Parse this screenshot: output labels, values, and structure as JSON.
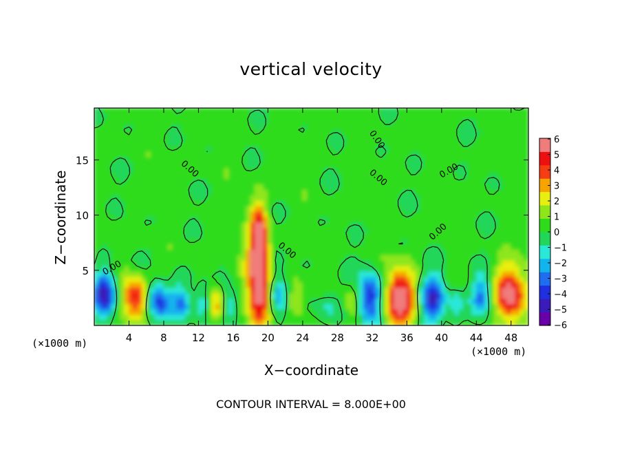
{
  "chart_data": {
    "type": "heatmap",
    "title": "vertical velocity",
    "xlabel": "X−coordinate",
    "ylabel": "Z−coordinate",
    "x_unit_label": "(×1000 m)",
    "xlim": [
      0,
      50
    ],
    "ylim": [
      0,
      19.7
    ],
    "xticks": [
      4,
      8,
      12,
      16,
      20,
      24,
      28,
      32,
      36,
      40,
      44,
      48
    ],
    "yticks": [
      5,
      10,
      15
    ],
    "colorbar": {
      "min": -6,
      "max": 6,
      "ticks": [
        "6",
        "5",
        "4",
        "3",
        "2",
        "1",
        "0",
        "−1",
        "−2",
        "−3",
        "−4",
        "−5",
        "−6"
      ],
      "colors": [
        "#6a00a8",
        "#3a1ab8",
        "#1f30e0",
        "#1f6ef0",
        "#12b4ee",
        "#2ae8d8",
        "#22d65a",
        "#2fdc1c",
        "#8ee61a",
        "#e8ee10",
        "#f7a400",
        "#f63c12",
        "#ee1010",
        "#f07c7c"
      ]
    },
    "contour_labels": [
      "0.00",
      "0.00",
      "0.00",
      "0.00",
      "0.00",
      "0.00",
      "0.00"
    ],
    "background_value": 0.3,
    "features": [
      {
        "x": 1.0,
        "z": 2.5,
        "w": -5.5,
        "sx": 0.9,
        "sz": 1.5
      },
      {
        "x": 4.5,
        "z": 2.3,
        "w": 4.8,
        "sx": 1.0,
        "sz": 1.4
      },
      {
        "x": 7.2,
        "z": 2.0,
        "w": -4.0,
        "sx": 0.9,
        "sz": 1.2
      },
      {
        "x": 9.8,
        "z": 1.8,
        "w": -3.2,
        "sx": 0.9,
        "sz": 1.2
      },
      {
        "x": 12.5,
        "z": 1.8,
        "w": -2.5,
        "sx": 0.7,
        "sz": 1.1
      },
      {
        "x": 13.7,
        "z": 1.6,
        "w": 3.5,
        "sx": 0.8,
        "sz": 1.2
      },
      {
        "x": 15.5,
        "z": 1.5,
        "w": -2.0,
        "sx": 0.8,
        "sz": 1.0
      },
      {
        "x": 18.8,
        "z": 3.5,
        "w": 6.0,
        "sx": 0.9,
        "sz": 2.8
      },
      {
        "x": 18.7,
        "z": 7.8,
        "w": 4.6,
        "sx": 0.7,
        "sz": 2.2
      },
      {
        "x": 21.0,
        "z": 2.5,
        "w": -2.5,
        "sx": 0.8,
        "sz": 1.5
      },
      {
        "x": 23.0,
        "z": 2.0,
        "w": 2.0,
        "sx": 0.7,
        "sz": 1.2
      },
      {
        "x": 26.5,
        "z": 1.5,
        "w": -1.5,
        "sx": 1.0,
        "sz": 1.0
      },
      {
        "x": 29.5,
        "z": 1.8,
        "w": 1.8,
        "sx": 0.6,
        "sz": 1.0
      },
      {
        "x": 31.6,
        "z": 2.4,
        "w": -4.6,
        "sx": 0.9,
        "sz": 1.6
      },
      {
        "x": 35.0,
        "z": 2.3,
        "w": 5.8,
        "sx": 1.2,
        "sz": 1.7
      },
      {
        "x": 38.8,
        "z": 2.2,
        "w": -4.6,
        "sx": 0.9,
        "sz": 1.5
      },
      {
        "x": 41.5,
        "z": 1.8,
        "w": -1.6,
        "sx": 0.7,
        "sz": 1.1
      },
      {
        "x": 44.4,
        "z": 2.4,
        "w": -3.6,
        "sx": 0.8,
        "sz": 1.4
      },
      {
        "x": 47.6,
        "z": 2.6,
        "w": 5.9,
        "sx": 1.2,
        "sz": 1.8
      }
    ]
  },
  "footer": {
    "contour_interval": "CONTOUR INTERVAL = 8.000E+00"
  }
}
